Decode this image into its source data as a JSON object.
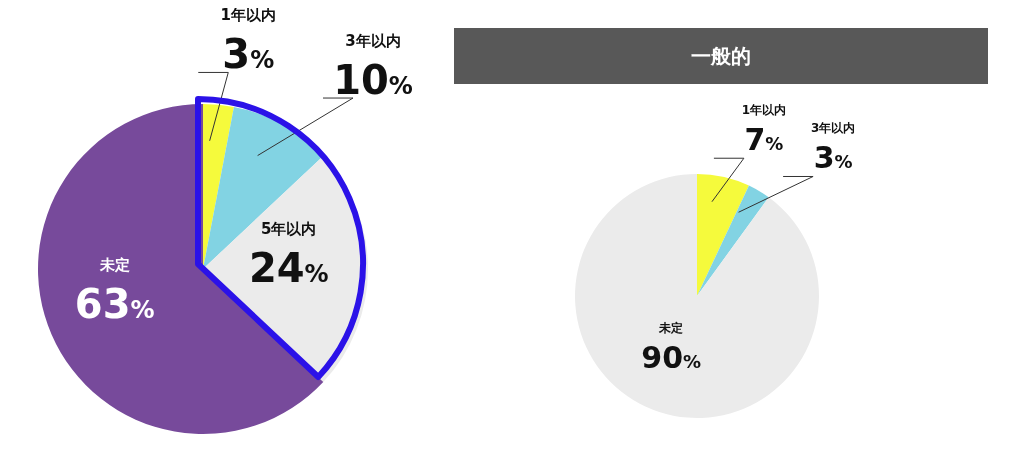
{
  "chart_data": [
    {
      "type": "pie",
      "categories": [
        "1年以内",
        "3年以内",
        "5年以内",
        "未定"
      ],
      "values": [
        3,
        10,
        24,
        63
      ],
      "colors": [
        "#f5fa3c",
        "#82d3e3",
        "#ebebeb",
        "#774a9b"
      ],
      "value_labels": [
        "3%",
        "10%",
        "24%",
        "63%"
      ]
    },
    {
      "type": "pie",
      "title": "一般的",
      "categories": [
        "1年以内",
        "3年以内",
        "未定"
      ],
      "values": [
        7,
        3,
        90
      ],
      "colors": [
        "#f5fa3c",
        "#82d3e3",
        "#ebebeb"
      ],
      "value_labels": [
        "7%",
        "3%",
        "90%"
      ]
    }
  ]
}
